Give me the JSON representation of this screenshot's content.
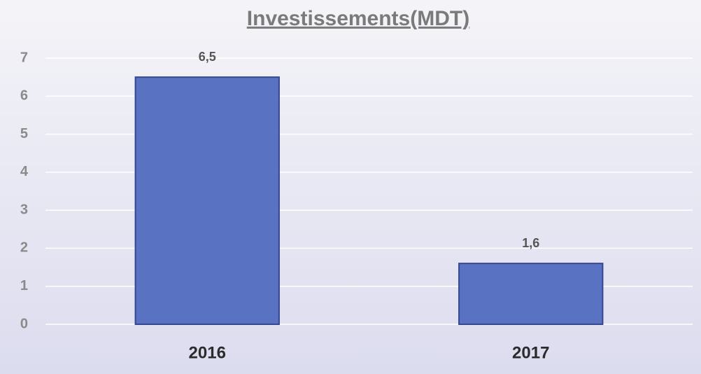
{
  "chart_data": {
    "type": "bar",
    "title": "Investissements(MDT)",
    "categories": [
      "2016",
      "2017"
    ],
    "values": [
      6.5,
      1.6
    ],
    "value_labels": [
      "6,5",
      "1,6"
    ],
    "color": "#5a72c2",
    "ylim": [
      0,
      7
    ],
    "yticks": [
      0,
      1,
      2,
      3,
      4,
      5,
      6,
      7
    ],
    "grid": true
  }
}
